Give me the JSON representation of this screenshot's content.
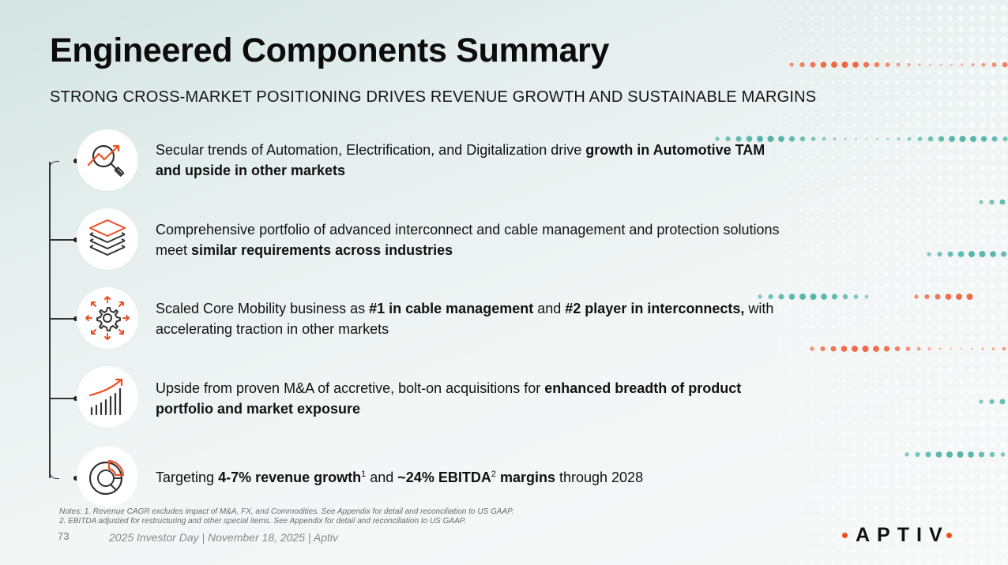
{
  "title": "Engineered Components Summary",
  "subtitle": "STRONG CROSS-MARKET POSITIONING DRIVES REVENUE GROWTH AND SUSTAINABLE MARGINS",
  "points": [
    {
      "icon": "magnifier-trend-icon",
      "text_1": "Secular trends of Automation, Electrification, and Digitalization drive ",
      "bold_1": "growth in Automotive TAM and upside in other markets"
    },
    {
      "icon": "layers-icon",
      "text_1": "Comprehensive portfolio of advanced interconnect and cable management and protection solutions meet ",
      "bold_1": "similar requirements across industries"
    },
    {
      "icon": "gear-expand-icon",
      "text_1": "Scaled Core Mobility business as ",
      "bold_1": "#1 in cable management",
      "text_2": " and ",
      "bold_2": "#2 player in interconnects,",
      "text_3": " with accelerating traction in other markets"
    },
    {
      "icon": "growth-bars-icon",
      "text_1": "Upside from proven M&A of accretive, bolt-on acquisitions for ",
      "bold_1": "enhanced breadth of product portfolio and market exposure"
    },
    {
      "icon": "pie-chart-icon",
      "text_1": "Targeting ",
      "bold_1": "4-7% revenue growth",
      "sup_1": "1",
      "text_2": " and ",
      "bold_2": "~24% EBITDA",
      "sup_2": "2",
      "bold_3": " margins",
      "text_3": " through 2028"
    }
  ],
  "notes": {
    "line_1": "Notes: 1. Revenue CAGR excludes impact of M&A, FX, and Commodities. See Appendix for detail and reconciliation to US GAAP.",
    "line_2": "2. EBITDA adjusted for restructuring and other special items. See Appendix for detail and reconciliation to US GAAP."
  },
  "page_number": "73",
  "footer": "2025 Investor Day | November 18, 2025 | Aptiv",
  "logo": "APTIV",
  "colors": {
    "accent_orange": "#f04e23",
    "accent_teal": "#3aa99b",
    "text": "#111111"
  }
}
